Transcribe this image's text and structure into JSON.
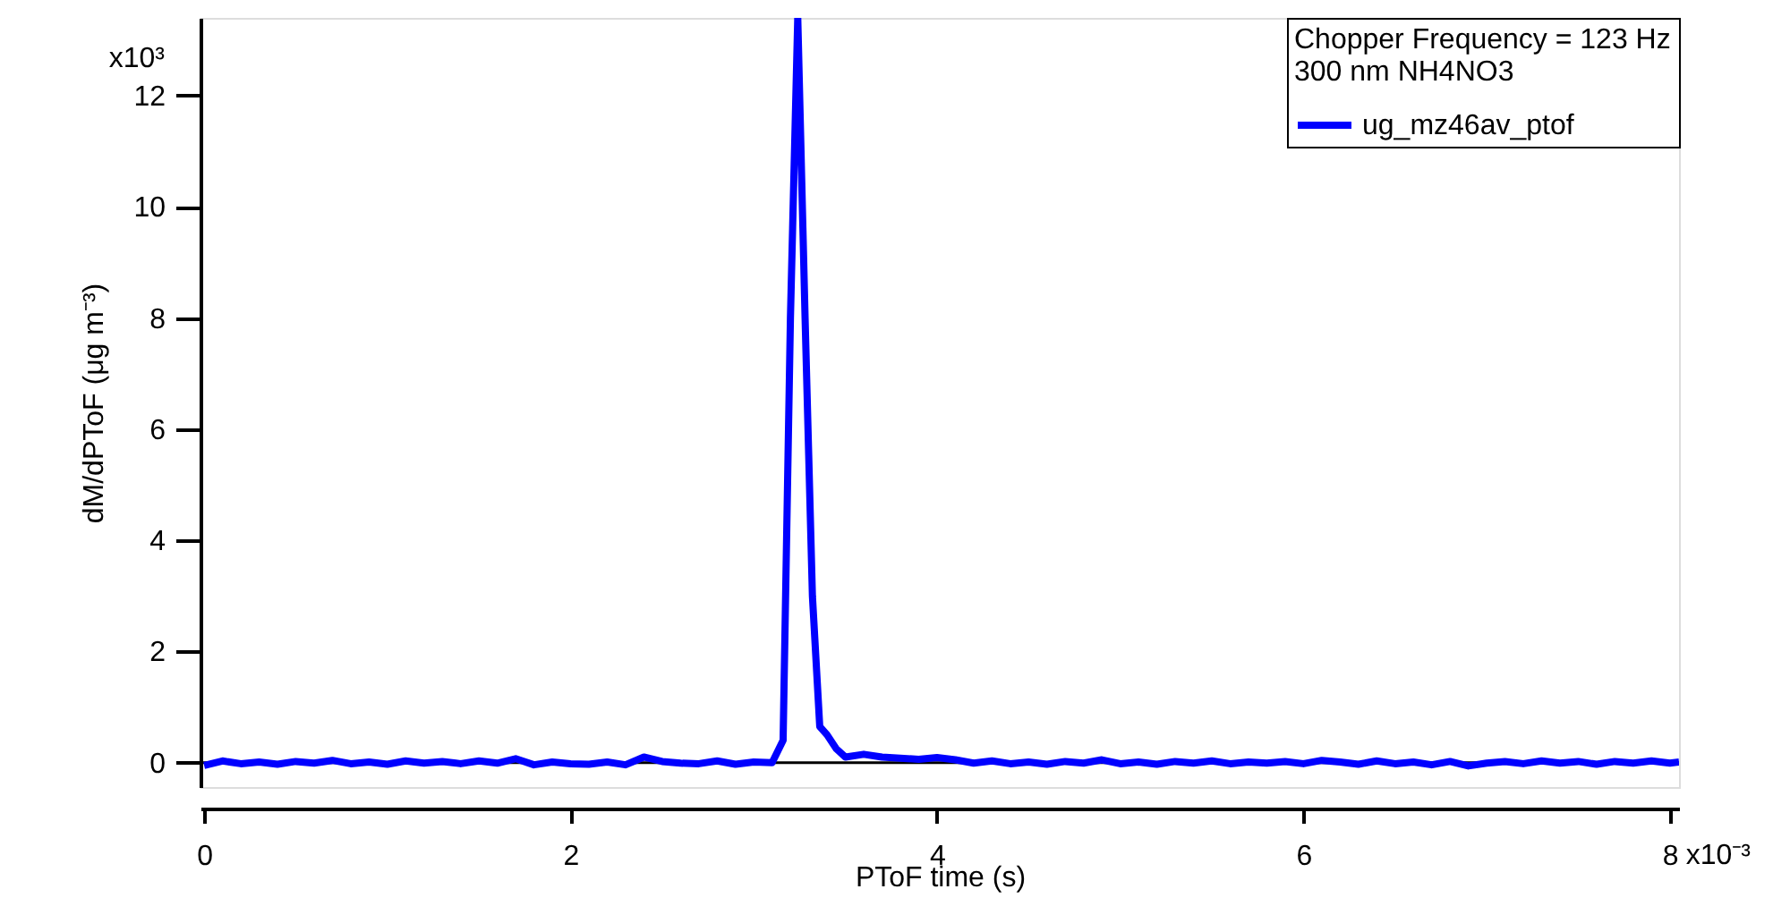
{
  "chart_data": {
    "type": "line",
    "xlabel": "PToF time (s)",
    "ylabel": "dM/dPToF (μg m⁻³)",
    "legend_title": "Chopper Frequency = 123 Hz\n300 nm NH4NO3",
    "legend": "top right",
    "marker": "none",
    "line_style": "solid",
    "xlim": [
      -0.02,
      8.05
    ],
    "ylim": [
      -0.44,
      13.4
    ],
    "grid": false,
    "xticks": [
      0,
      2,
      4,
      6,
      8
    ],
    "yticks": [
      0,
      2,
      4,
      6,
      8,
      10,
      12
    ],
    "annotations": [
      "x10⁻³",
      "x10³"
    ],
    "ref_lines": [
      {
        "axis": "y",
        "value": 0,
        "color": "#000000"
      }
    ],
    "x": [
      0,
      0.1,
      0.2,
      0.3,
      0.4,
      0.5,
      0.6,
      0.7,
      0.8,
      0.9,
      1.0,
      1.1,
      1.2,
      1.3,
      1.4,
      1.5,
      1.6,
      1.7,
      1.8,
      1.9,
      2.0,
      2.1,
      2.2,
      2.3,
      2.4,
      2.5,
      2.6,
      2.7,
      2.8,
      2.9,
      3.0,
      3.1,
      3.16,
      3.2,
      3.24,
      3.28,
      3.32,
      3.36,
      3.4,
      3.45,
      3.5,
      3.6,
      3.7,
      3.8,
      3.9,
      4.0,
      4.1,
      4.2,
      4.3,
      4.4,
      4.5,
      4.6,
      4.7,
      4.8,
      4.9,
      5.0,
      5.1,
      5.2,
      5.3,
      5.4,
      5.5,
      5.6,
      5.7,
      5.8,
      5.9,
      6.0,
      6.1,
      6.2,
      6.3,
      6.4,
      6.5,
      6.6,
      6.7,
      6.8,
      6.9,
      7.0,
      7.1,
      7.2,
      7.3,
      7.4,
      7.5,
      7.6,
      7.7,
      7.8,
      7.9,
      8.0,
      8.05
    ],
    "series": [
      {
        "name": "ug_mz46av_ptof",
        "color": "#0000ff",
        "values": [
          -0.05,
          0.03,
          -0.02,
          0.01,
          -0.03,
          0.02,
          -0.01,
          0.04,
          -0.02,
          0.01,
          -0.03,
          0.03,
          -0.01,
          0.02,
          -0.02,
          0.03,
          -0.01,
          0.07,
          -0.04,
          0.01,
          -0.02,
          -0.03,
          0.01,
          -0.04,
          0.1,
          0.02,
          -0.01,
          -0.02,
          0.03,
          -0.03,
          0.01,
          0,
          0.4,
          8.0,
          13.4,
          8.0,
          3.0,
          0.65,
          0.5,
          0.25,
          0.1,
          0.15,
          0.1,
          0.08,
          0.06,
          0.09,
          0.05,
          -0.01,
          0.03,
          -0.02,
          0.01,
          -0.03,
          0.02,
          -0.01,
          0.05,
          -0.02,
          0.01,
          -0.03,
          0.02,
          -0.01,
          0.03,
          -0.02,
          0.01,
          -0.01,
          0.02,
          -0.02,
          0.04,
          0.01,
          -0.03,
          0.03,
          -0.02,
          0.01,
          -0.04,
          0.02,
          -0.06,
          -0.01,
          0.02,
          -0.02,
          0.03,
          -0.01,
          0.02,
          -0.03,
          0.02,
          -0.01,
          0.03,
          -0.01,
          0.01
        ]
      }
    ]
  }
}
